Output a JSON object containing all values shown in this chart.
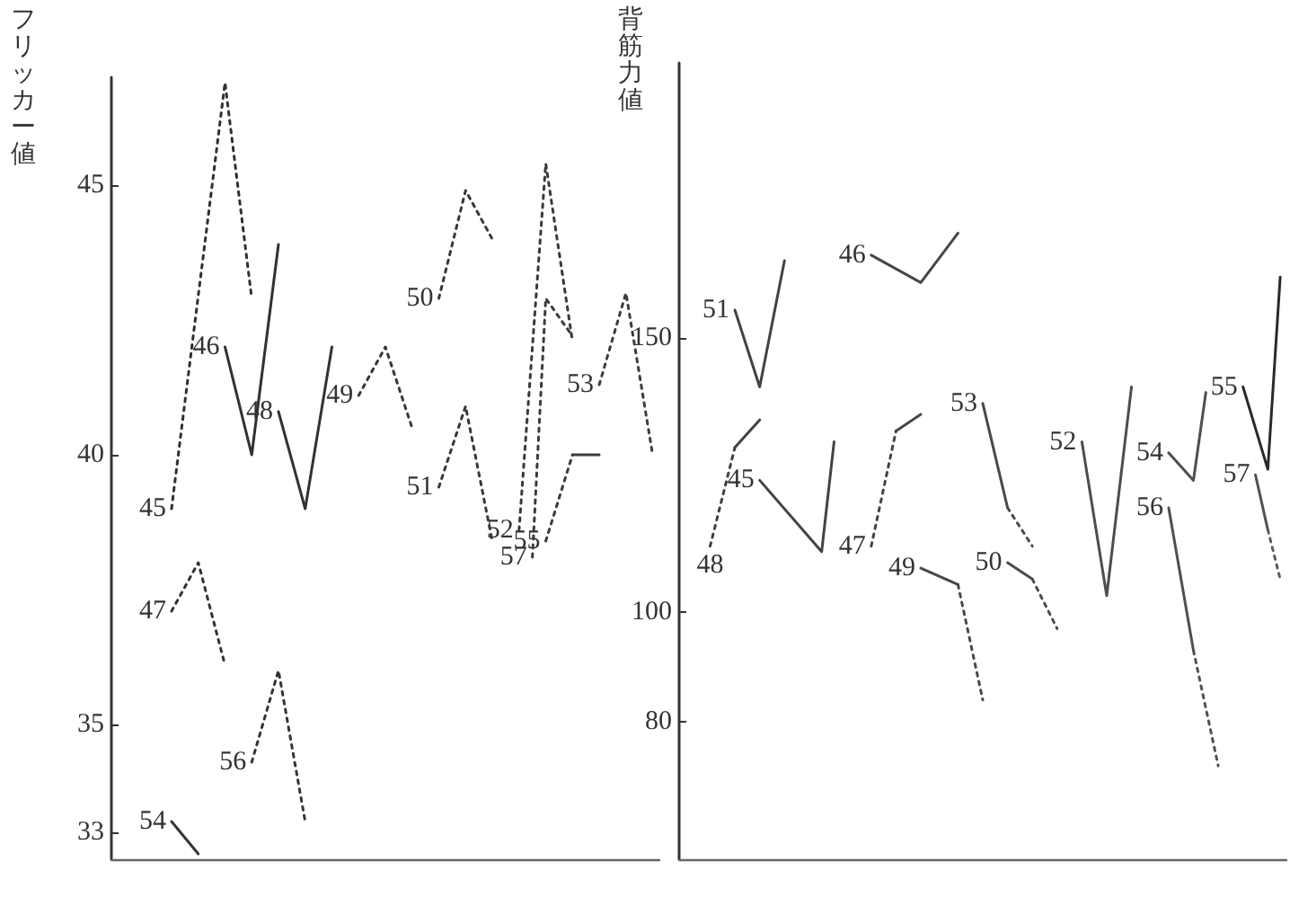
{
  "chart_data": [
    {
      "type": "line",
      "ylabel": "フリッカー値",
      "marker": "none",
      "tick_labels": "y",
      "ylim": [
        32.5,
        47
      ],
      "yticks": [
        33,
        35,
        40,
        45
      ],
      "categories": [
        null,
        null,
        null,
        null,
        null,
        null,
        null,
        null,
        null,
        null,
        null,
        null,
        null,
        null,
        null,
        null,
        null,
        null,
        null,
        null,
        null,
        null,
        null,
        null,
        null,
        null,
        null,
        null,
        null,
        null,
        null,
        null,
        null,
        null,
        null,
        null,
        null,
        null,
        null,
        null,
        null
      ],
      "series": [
        {
          "name": "45",
          "color": "#303030",
          "line_style": "dotted",
          "values": [
            null,
            null,
            null,
            null,
            39,
            null,
            null,
            null,
            46.9,
            null,
            42.9,
            null,
            null,
            null,
            null,
            null,
            null,
            null,
            null,
            null,
            null,
            null,
            null,
            null,
            null,
            null,
            null,
            null,
            null,
            null,
            null,
            null,
            null,
            null,
            null,
            null,
            null,
            null,
            null,
            null,
            null
          ]
        },
        {
          "name": "46",
          "color": "#313131",
          "line_style": "solid",
          "values": [
            null,
            null,
            null,
            null,
            null,
            null,
            null,
            null,
            42,
            null,
            40,
            null,
            43.9,
            null,
            null,
            null,
            null,
            null,
            null,
            null,
            null,
            null,
            null,
            null,
            null,
            null,
            null,
            null,
            null,
            null,
            null,
            null,
            null,
            null,
            null,
            null,
            null,
            null,
            null,
            null,
            null
          ]
        },
        {
          "name": "48",
          "color": "#323232",
          "line_style": "solid",
          "values": [
            null,
            null,
            null,
            null,
            null,
            null,
            null,
            null,
            null,
            null,
            null,
            null,
            40.8,
            null,
            39,
            null,
            42,
            null,
            null,
            null,
            null,
            null,
            null,
            null,
            null,
            null,
            null,
            null,
            null,
            null,
            null,
            null,
            null,
            null,
            null,
            null,
            null,
            null,
            null,
            null,
            null
          ]
        },
        {
          "name": "47",
          "color": "#333333",
          "line_style": "dotted",
          "values": [
            null,
            null,
            null,
            null,
            37.1,
            null,
            38,
            null,
            36.1,
            null,
            null,
            null,
            null,
            null,
            null,
            null,
            null,
            null,
            null,
            null,
            null,
            null,
            null,
            null,
            null,
            null,
            null,
            null,
            null,
            null,
            null,
            null,
            null,
            null,
            null,
            null,
            null,
            null,
            null,
            null,
            null
          ]
        },
        {
          "name": "56",
          "color": "#343434",
          "line_style": "dotted",
          "values": [
            null,
            null,
            null,
            null,
            null,
            null,
            null,
            null,
            null,
            null,
            34.3,
            null,
            36,
            null,
            33.2,
            null,
            null,
            null,
            null,
            null,
            null,
            null,
            null,
            null,
            null,
            null,
            null,
            null,
            null,
            null,
            null,
            null,
            null,
            null,
            null,
            null,
            null,
            null,
            null,
            null,
            null
          ]
        },
        {
          "name": "54",
          "color": "#353535",
          "line_style": "solid",
          "values": [
            null,
            null,
            null,
            null,
            33.2,
            null,
            32.6,
            null,
            null,
            null,
            null,
            null,
            null,
            null,
            null,
            null,
            null,
            null,
            null,
            null,
            null,
            null,
            null,
            null,
            null,
            null,
            null,
            null,
            null,
            null,
            null,
            null,
            null,
            null,
            null,
            null,
            null,
            null,
            null,
            null,
            null
          ]
        },
        {
          "name": "49",
          "color": "#363636",
          "line_style": "dotted",
          "values": [
            null,
            null,
            null,
            null,
            null,
            null,
            null,
            null,
            null,
            null,
            null,
            null,
            null,
            null,
            null,
            null,
            null,
            null,
            41.1,
            null,
            42,
            null,
            40.5,
            null,
            null,
            null,
            null,
            null,
            null,
            null,
            null,
            null,
            null,
            null,
            null,
            null,
            null,
            null,
            null,
            null,
            null
          ]
        },
        {
          "name": "50",
          "color": "#373737",
          "line_style": "dotted",
          "values": [
            null,
            null,
            null,
            null,
            null,
            null,
            null,
            null,
            null,
            null,
            null,
            null,
            null,
            null,
            null,
            null,
            null,
            null,
            null,
            null,
            null,
            null,
            null,
            null,
            42.9,
            null,
            44.9,
            null,
            44,
            null,
            null,
            null,
            null,
            null,
            null,
            null,
            null,
            null,
            null,
            null,
            null
          ]
        },
        {
          "name": "51",
          "color": "#383838",
          "line_style": "dotted",
          "values": [
            null,
            null,
            null,
            null,
            null,
            null,
            null,
            null,
            null,
            null,
            null,
            null,
            null,
            null,
            null,
            null,
            null,
            null,
            null,
            null,
            null,
            null,
            null,
            null,
            39.4,
            null,
            40.9,
            null,
            38.4,
            null,
            null,
            null,
            null,
            null,
            null,
            null,
            null,
            null,
            null,
            null,
            null
          ]
        },
        {
          "name": "52",
          "color": "#393939",
          "line_style": "dotted",
          "values": [
            null,
            null,
            null,
            null,
            null,
            null,
            null,
            null,
            null,
            null,
            null,
            null,
            null,
            null,
            null,
            null,
            null,
            null,
            null,
            null,
            null,
            null,
            null,
            null,
            null,
            null,
            null,
            null,
            null,
            null,
            38.6,
            null,
            45.4,
            null,
            42.1,
            null,
            null,
            null,
            null,
            null,
            null
          ]
        },
        {
          "name": "57",
          "color": "#3a3a3a",
          "line_style": "dotted",
          "values": [
            null,
            null,
            null,
            null,
            null,
            null,
            null,
            null,
            null,
            null,
            null,
            null,
            null,
            null,
            null,
            null,
            null,
            null,
            null,
            null,
            null,
            null,
            null,
            null,
            null,
            null,
            null,
            null,
            null,
            null,
            null,
            38.1,
            42.9,
            null,
            42.2,
            null,
            null,
            null,
            null,
            null,
            null
          ]
        },
        {
          "name": "55",
          "color": "#3b3b3b",
          "line_style": "dotted",
          "values": [
            null,
            null,
            null,
            null,
            null,
            null,
            null,
            null,
            null,
            null,
            null,
            null,
            null,
            null,
            null,
            null,
            null,
            null,
            null,
            null,
            null,
            null,
            null,
            null,
            null,
            null,
            null,
            null,
            null,
            null,
            null,
            null,
            38.4,
            null,
            40,
            null,
            null,
            null,
            null,
            null,
            null
          ]
        },
        {
          "color": "#3c3c3c",
          "line_style": "solid",
          "values": [
            null,
            null,
            null,
            null,
            null,
            null,
            null,
            null,
            null,
            null,
            null,
            null,
            null,
            null,
            null,
            null,
            null,
            null,
            null,
            null,
            null,
            null,
            null,
            null,
            null,
            null,
            null,
            null,
            null,
            null,
            null,
            null,
            null,
            null,
            40,
            null,
            40,
            null,
            null,
            null,
            null
          ]
        },
        {
          "name": "53",
          "color": "#3d3d3d",
          "line_style": "dotted",
          "values": [
            null,
            null,
            null,
            null,
            null,
            null,
            null,
            null,
            null,
            null,
            null,
            null,
            null,
            null,
            null,
            null,
            null,
            null,
            null,
            null,
            null,
            null,
            null,
            null,
            null,
            null,
            null,
            null,
            null,
            null,
            null,
            null,
            null,
            null,
            null,
            null,
            41.3,
            null,
            43,
            null,
            40
          ]
        }
      ]
    },
    {
      "type": "line",
      "ylabel": "背筋力値",
      "marker": "none",
      "tick_labels": "y",
      "ylim": [
        55,
        200
      ],
      "yticks": [
        80,
        100,
        150
      ],
      "categories": [
        null,
        null,
        null,
        null,
        null,
        null,
        null,
        null,
        null,
        null,
        null,
        null,
        null,
        null,
        null,
        null,
        null,
        null,
        null,
        null,
        null,
        null,
        null,
        null,
        null,
        null,
        null,
        null,
        null,
        null,
        null,
        null,
        null,
        null,
        null,
        null,
        null,
        null,
        null,
        null,
        null,
        null,
        null,
        null,
        null,
        null,
        null,
        null,
        null
      ],
      "series": [
        {
          "name": "48",
          "color": "#404040",
          "line_style": "dotted",
          "values": [
            null,
            null,
            112,
            null,
            130,
            null,
            null,
            null,
            null,
            null,
            null,
            null,
            null,
            null,
            null,
            null,
            null,
            null,
            null,
            null,
            null,
            null,
            null,
            null,
            null,
            null,
            null,
            null,
            null,
            null,
            null,
            null,
            null,
            null,
            null,
            null,
            null,
            null,
            null,
            null,
            null,
            null,
            null,
            null,
            null,
            null,
            null,
            null,
            null
          ]
        },
        {
          "color": "#414141",
          "line_style": "solid",
          "values": [
            null,
            null,
            null,
            null,
            130,
            null,
            135,
            null,
            null,
            null,
            null,
            null,
            null,
            null,
            null,
            null,
            null,
            null,
            null,
            null,
            null,
            null,
            null,
            null,
            null,
            null,
            null,
            null,
            null,
            null,
            null,
            null,
            null,
            null,
            null,
            null,
            null,
            null,
            null,
            null,
            null,
            null,
            null,
            null,
            null,
            null,
            null,
            null,
            null
          ]
        },
        {
          "name": "51",
          "color": "#424242",
          "line_style": "solid",
          "values": [
            null,
            null,
            null,
            null,
            155,
            null,
            141,
            null,
            164,
            null,
            null,
            null,
            null,
            null,
            null,
            null,
            null,
            null,
            null,
            null,
            null,
            null,
            null,
            null,
            null,
            null,
            null,
            null,
            null,
            null,
            null,
            null,
            null,
            null,
            null,
            null,
            null,
            null,
            null,
            null,
            null,
            null,
            null,
            null,
            null,
            null,
            null,
            null,
            null
          ]
        },
        {
          "name": "45",
          "color": "#434343",
          "line_style": "solid",
          "values": [
            null,
            null,
            null,
            null,
            null,
            null,
            124,
            null,
            null,
            null,
            null,
            111,
            131,
            null,
            null,
            null,
            null,
            null,
            null,
            null,
            null,
            null,
            null,
            null,
            null,
            null,
            null,
            null,
            null,
            null,
            null,
            null,
            null,
            null,
            null,
            null,
            null,
            null,
            null,
            null,
            null,
            null,
            null,
            null,
            null,
            null,
            null,
            null,
            null
          ]
        },
        {
          "name": "47",
          "color": "#444444",
          "line_style": "dotted",
          "values": [
            null,
            null,
            null,
            null,
            null,
            null,
            null,
            null,
            null,
            null,
            null,
            null,
            null,
            null,
            null,
            112,
            null,
            133,
            null,
            null,
            null,
            null,
            null,
            null,
            null,
            null,
            null,
            null,
            null,
            null,
            null,
            null,
            null,
            null,
            null,
            null,
            null,
            null,
            null,
            null,
            null,
            null,
            null,
            null,
            null,
            null,
            null,
            null,
            null
          ]
        },
        {
          "color": "#454545",
          "line_style": "solid",
          "values": [
            null,
            null,
            null,
            null,
            null,
            null,
            null,
            null,
            null,
            null,
            null,
            null,
            null,
            null,
            null,
            null,
            null,
            133,
            null,
            136,
            null,
            null,
            null,
            null,
            null,
            null,
            null,
            null,
            null,
            null,
            null,
            null,
            null,
            null,
            null,
            null,
            null,
            null,
            null,
            null,
            null,
            null,
            null,
            null,
            null,
            null,
            null,
            null,
            null
          ]
        },
        {
          "name": "46",
          "color": "#464646",
          "line_style": "solid",
          "values": [
            null,
            null,
            null,
            null,
            null,
            null,
            null,
            null,
            null,
            null,
            null,
            null,
            null,
            null,
            null,
            165,
            null,
            null,
            null,
            160,
            null,
            null,
            169,
            null,
            null,
            null,
            null,
            null,
            null,
            null,
            null,
            null,
            null,
            null,
            null,
            null,
            null,
            null,
            null,
            null,
            null,
            null,
            null,
            null,
            null,
            null,
            null,
            null,
            null
          ]
        },
        {
          "name": "49",
          "color": "#474747",
          "line_style": "solid",
          "values": [
            null,
            null,
            null,
            null,
            null,
            null,
            null,
            null,
            null,
            null,
            null,
            null,
            null,
            null,
            null,
            null,
            null,
            null,
            null,
            108,
            null,
            null,
            105,
            null,
            null,
            null,
            null,
            null,
            null,
            null,
            null,
            null,
            null,
            null,
            null,
            null,
            null,
            null,
            null,
            null,
            null,
            null,
            null,
            null,
            null,
            null,
            null,
            null,
            null
          ]
        },
        {
          "color": "#484848",
          "line_style": "dotted",
          "values": [
            null,
            null,
            null,
            null,
            null,
            null,
            null,
            null,
            null,
            null,
            null,
            null,
            null,
            null,
            null,
            null,
            null,
            null,
            null,
            null,
            null,
            null,
            105,
            null,
            84,
            null,
            null,
            null,
            null,
            null,
            null,
            null,
            null,
            null,
            null,
            null,
            null,
            null,
            null,
            null,
            null,
            null,
            null,
            null,
            null,
            null,
            null,
            null,
            null
          ]
        },
        {
          "name": "53",
          "color": "#494949",
          "line_style": "solid",
          "values": [
            null,
            null,
            null,
            null,
            null,
            null,
            null,
            null,
            null,
            null,
            null,
            null,
            null,
            null,
            null,
            null,
            null,
            null,
            null,
            null,
            null,
            null,
            null,
            null,
            138,
            null,
            119,
            null,
            null,
            null,
            null,
            null,
            null,
            null,
            null,
            null,
            null,
            null,
            null,
            null,
            null,
            null,
            null,
            null,
            null,
            null,
            null,
            null,
            null
          ]
        },
        {
          "color": "#4a4a4a",
          "line_style": "dotted",
          "values": [
            null,
            null,
            null,
            null,
            null,
            null,
            null,
            null,
            null,
            null,
            null,
            null,
            null,
            null,
            null,
            null,
            null,
            null,
            null,
            null,
            null,
            null,
            null,
            null,
            null,
            null,
            119,
            null,
            112,
            null,
            null,
            null,
            null,
            null,
            null,
            null,
            null,
            null,
            null,
            null,
            null,
            null,
            null,
            null,
            null,
            null,
            null,
            null,
            null
          ]
        },
        {
          "name": "50",
          "color": "#4b4b4b",
          "line_style": "solid",
          "values": [
            null,
            null,
            null,
            null,
            null,
            null,
            null,
            null,
            null,
            null,
            null,
            null,
            null,
            null,
            null,
            null,
            null,
            null,
            null,
            null,
            null,
            null,
            null,
            null,
            null,
            null,
            109,
            null,
            106,
            null,
            null,
            null,
            null,
            null,
            null,
            null,
            null,
            null,
            null,
            null,
            null,
            null,
            null,
            null,
            null,
            null,
            null,
            null,
            null
          ]
        },
        {
          "color": "#4c4c4c",
          "line_style": "dotted",
          "values": [
            null,
            null,
            null,
            null,
            null,
            null,
            null,
            null,
            null,
            null,
            null,
            null,
            null,
            null,
            null,
            null,
            null,
            null,
            null,
            null,
            null,
            null,
            null,
            null,
            null,
            null,
            null,
            null,
            106,
            null,
            97,
            null,
            null,
            null,
            null,
            null,
            null,
            null,
            null,
            null,
            null,
            null,
            null,
            null,
            null,
            null,
            null,
            null,
            null
          ]
        },
        {
          "name": "52",
          "color": "#4d4d4d",
          "line_style": "solid",
          "values": [
            null,
            null,
            null,
            null,
            null,
            null,
            null,
            null,
            null,
            null,
            null,
            null,
            null,
            null,
            null,
            null,
            null,
            null,
            null,
            null,
            null,
            null,
            null,
            null,
            null,
            null,
            null,
            null,
            null,
            null,
            null,
            null,
            131,
            null,
            103,
            null,
            141,
            null,
            null,
            null,
            null,
            null,
            null,
            null,
            null,
            null,
            null,
            null,
            null
          ]
        },
        {
          "name": "54",
          "color": "#4e4e4e",
          "line_style": "solid",
          "values": [
            null,
            null,
            null,
            null,
            null,
            null,
            null,
            null,
            null,
            null,
            null,
            null,
            null,
            null,
            null,
            null,
            null,
            null,
            null,
            null,
            null,
            null,
            null,
            null,
            null,
            null,
            null,
            null,
            null,
            null,
            null,
            null,
            null,
            null,
            null,
            null,
            null,
            null,
            null,
            129,
            null,
            124,
            140,
            null,
            null,
            null,
            null,
            null,
            null
          ]
        },
        {
          "name": "56",
          "color": "#4f4f4f",
          "line_style": "solid",
          "values": [
            null,
            null,
            null,
            null,
            null,
            null,
            null,
            null,
            null,
            null,
            null,
            null,
            null,
            null,
            null,
            null,
            null,
            null,
            null,
            null,
            null,
            null,
            null,
            null,
            null,
            null,
            null,
            null,
            null,
            null,
            null,
            null,
            null,
            null,
            null,
            null,
            null,
            null,
            null,
            119,
            null,
            93,
            null,
            null,
            null,
            null,
            null,
            null,
            null
          ]
        },
        {
          "color": "#505050",
          "line_style": "dotted",
          "values": [
            null,
            null,
            null,
            null,
            null,
            null,
            null,
            null,
            null,
            null,
            null,
            null,
            null,
            null,
            null,
            null,
            null,
            null,
            null,
            null,
            null,
            null,
            null,
            null,
            null,
            null,
            null,
            null,
            null,
            null,
            null,
            null,
            null,
            null,
            null,
            null,
            null,
            null,
            null,
            null,
            null,
            93,
            null,
            72,
            null,
            null,
            null,
            null,
            null
          ]
        },
        {
          "name": "55",
          "color": "#2a2a2a",
          "line_style": "solid",
          "values": [
            null,
            null,
            null,
            null,
            null,
            null,
            null,
            null,
            null,
            null,
            null,
            null,
            null,
            null,
            null,
            null,
            null,
            null,
            null,
            null,
            null,
            null,
            null,
            null,
            null,
            null,
            null,
            null,
            null,
            null,
            null,
            null,
            null,
            null,
            null,
            null,
            null,
            null,
            null,
            null,
            null,
            null,
            null,
            null,
            null,
            141,
            null,
            126,
            161
          ]
        },
        {
          "name": "57",
          "color": "#525252",
          "line_style": "solid",
          "values": [
            null,
            null,
            null,
            null,
            null,
            null,
            null,
            null,
            null,
            null,
            null,
            null,
            null,
            null,
            null,
            null,
            null,
            null,
            null,
            null,
            null,
            null,
            null,
            null,
            null,
            null,
            null,
            null,
            null,
            null,
            null,
            null,
            null,
            null,
            null,
            null,
            null,
            null,
            null,
            null,
            null,
            null,
            null,
            null,
            null,
            null,
            125,
            115,
            null
          ]
        },
        {
          "color": "#5c5c5c",
          "line_style": "dotted",
          "values": [
            null,
            null,
            null,
            null,
            null,
            null,
            null,
            null,
            null,
            null,
            null,
            null,
            null,
            null,
            null,
            null,
            null,
            null,
            null,
            null,
            null,
            null,
            null,
            null,
            null,
            null,
            null,
            null,
            null,
            null,
            null,
            null,
            null,
            null,
            null,
            null,
            null,
            null,
            null,
            null,
            null,
            null,
            null,
            null,
            null,
            null,
            null,
            115,
            106
          ]
        }
      ]
    }
  ]
}
